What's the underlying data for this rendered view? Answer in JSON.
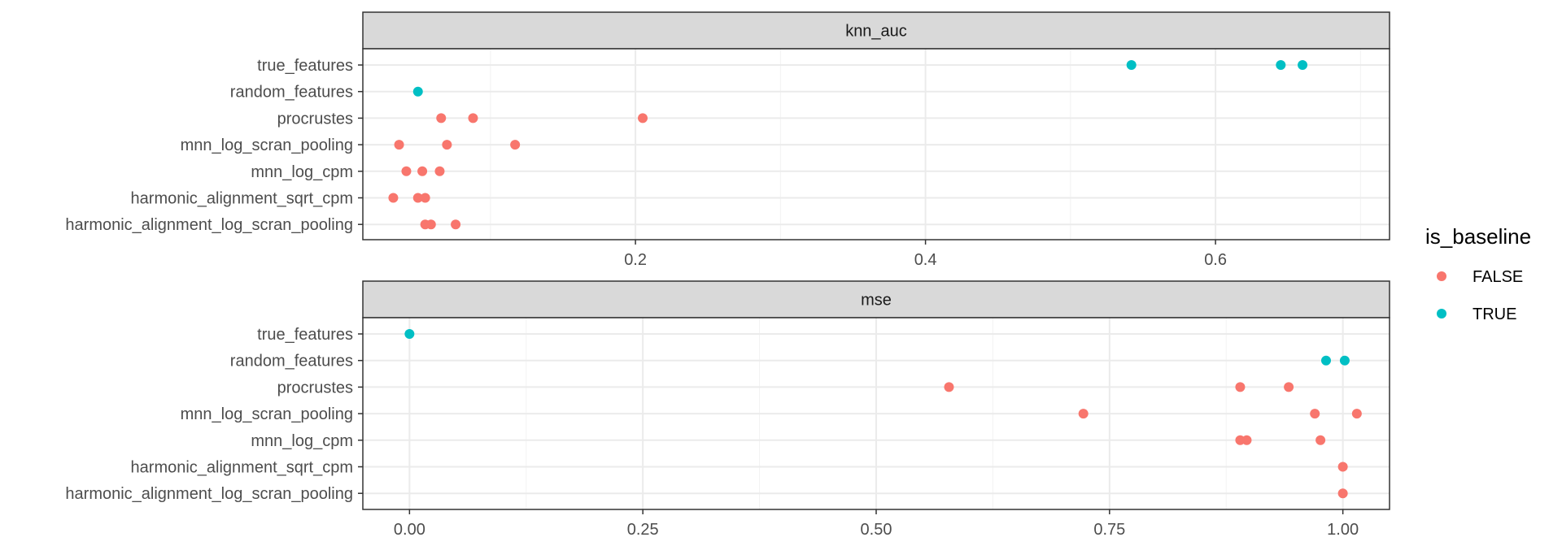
{
  "chart_data": {
    "type": "scatter",
    "categories": [
      "true_features",
      "random_features",
      "procrustes",
      "mnn_log_scran_pooling",
      "mnn_log_cpm",
      "harmonic_alignment_sqrt_cpm",
      "harmonic_alignment_log_scran_pooling"
    ],
    "legend": {
      "title": "is_baseline",
      "position": "right",
      "entries": [
        {
          "label": "FALSE",
          "color": "#F8766D"
        },
        {
          "label": "TRUE",
          "color": "#00BFC4"
        }
      ]
    },
    "facets": [
      {
        "title": "knn_auc",
        "xlim": [
          0.012,
          0.72
        ],
        "xticks": [
          0.2,
          0.4,
          0.6
        ],
        "xtick_labels": [
          "0.2",
          "0.4",
          "0.6"
        ],
        "minor_ticks": [
          0.1,
          0.3,
          0.5,
          0.7
        ],
        "series": [
          {
            "category": "true_features",
            "is_baseline": "TRUE",
            "values": [
              0.542,
              0.645,
              0.66
            ]
          },
          {
            "category": "random_features",
            "is_baseline": "TRUE",
            "values": [
              0.05
            ]
          },
          {
            "category": "procrustes",
            "is_baseline": "FALSE",
            "values": [
              0.066,
              0.088,
              0.205
            ]
          },
          {
            "category": "mnn_log_scran_pooling",
            "is_baseline": "FALSE",
            "values": [
              0.037,
              0.07,
              0.117
            ]
          },
          {
            "category": "mnn_log_cpm",
            "is_baseline": "FALSE",
            "values": [
              0.042,
              0.053,
              0.065
            ]
          },
          {
            "category": "harmonic_alignment_sqrt_cpm",
            "is_baseline": "FALSE",
            "values": [
              0.033,
              0.05,
              0.055
            ]
          },
          {
            "category": "harmonic_alignment_log_scran_pooling",
            "is_baseline": "FALSE",
            "values": [
              0.055,
              0.059,
              0.076
            ]
          }
        ]
      },
      {
        "title": "mse",
        "xlim": [
          -0.05,
          1.05
        ],
        "xticks": [
          0.0,
          0.25,
          0.5,
          0.75,
          1.0
        ],
        "xtick_labels": [
          "0.00",
          "0.25",
          "0.50",
          "0.75",
          "1.00"
        ],
        "minor_ticks": [
          0.125,
          0.375,
          0.625,
          0.875
        ],
        "series": [
          {
            "category": "true_features",
            "is_baseline": "TRUE",
            "values": [
              0.0
            ]
          },
          {
            "category": "random_features",
            "is_baseline": "TRUE",
            "values": [
              0.982,
              1.002
            ]
          },
          {
            "category": "procrustes",
            "is_baseline": "FALSE",
            "values": [
              0.578,
              0.89,
              0.942
            ]
          },
          {
            "category": "mnn_log_scran_pooling",
            "is_baseline": "FALSE",
            "values": [
              0.722,
              0.97,
              1.015
            ]
          },
          {
            "category": "mnn_log_cpm",
            "is_baseline": "FALSE",
            "values": [
              0.89,
              0.897,
              0.976
            ]
          },
          {
            "category": "harmonic_alignment_sqrt_cpm",
            "is_baseline": "FALSE",
            "values": [
              1.0
            ]
          },
          {
            "category": "harmonic_alignment_log_scran_pooling",
            "is_baseline": "FALSE",
            "values": [
              1.0
            ]
          }
        ]
      }
    ]
  }
}
